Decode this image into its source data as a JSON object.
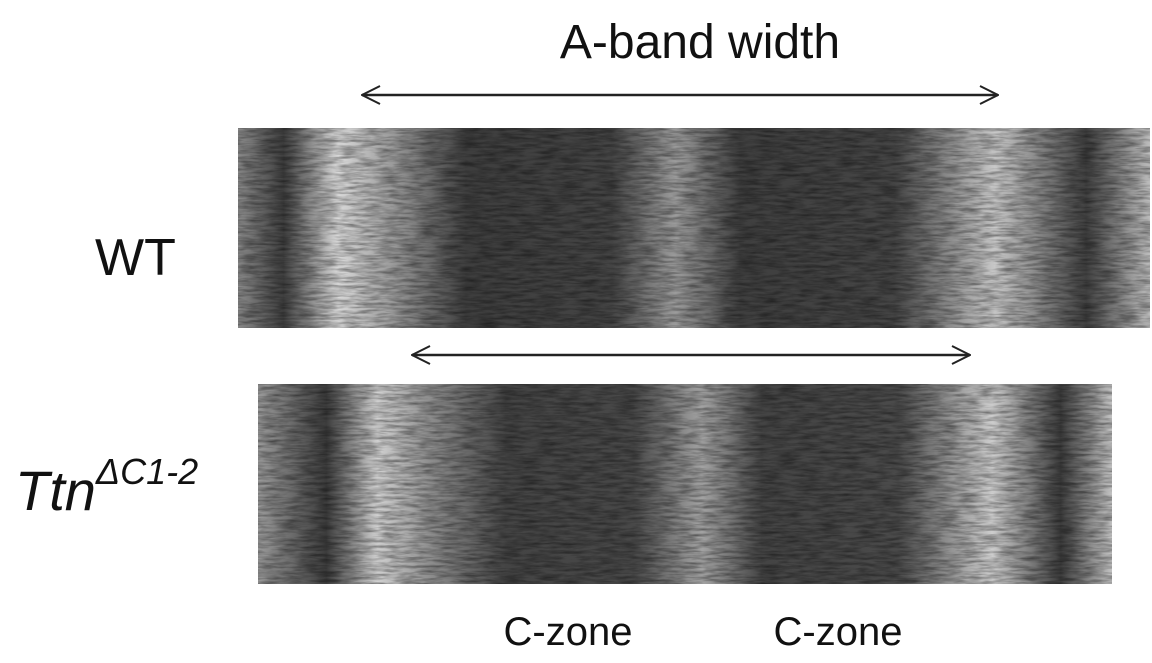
{
  "title": "A-band width",
  "labels": {
    "wild_type": "WT",
    "mutant": {
      "base": "Ttn",
      "superscript": "ΔC1-2"
    }
  },
  "zones": [
    "C-zone",
    "C-zone"
  ]
}
